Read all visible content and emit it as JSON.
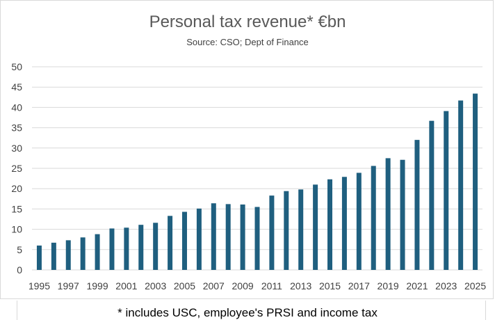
{
  "chart_data": {
    "type": "bar",
    "title": "Personal tax revenue* €bn",
    "subtitle": "Source: CSO; Dept of Finance",
    "footnote": "* includes USC, employee's PRSI and income tax",
    "categories": [
      "1995",
      "1996",
      "1997",
      "1998",
      "1999",
      "2000",
      "2001",
      "2002",
      "2003",
      "2004",
      "2005",
      "2006",
      "2007",
      "2008",
      "2009",
      "2010",
      "2011",
      "2012",
      "2013",
      "2014",
      "2015",
      "2016",
      "2017",
      "2018",
      "2019",
      "2020",
      "2021",
      "2022",
      "2023",
      "2024",
      "2025"
    ],
    "x_tick_labels": [
      "1995",
      "1997",
      "1999",
      "2001",
      "2003",
      "2005",
      "2007",
      "2009",
      "2011",
      "2013",
      "2015",
      "2017",
      "2019",
      "2021",
      "2023",
      "2025"
    ],
    "values": [
      6.0,
      6.7,
      7.3,
      8.0,
      8.8,
      10.2,
      10.4,
      11.1,
      11.6,
      13.3,
      14.3,
      15.1,
      16.4,
      16.2,
      16.1,
      15.5,
      18.3,
      19.4,
      19.8,
      21.0,
      22.3,
      22.9,
      23.9,
      25.6,
      27.5,
      27.1,
      32.0,
      36.7,
      39.1,
      41.7,
      43.4
    ],
    "ylim": [
      0,
      50
    ],
    "y_ticks": [
      "0",
      "5",
      "10",
      "15",
      "20",
      "25",
      "30",
      "35",
      "40",
      "45",
      "50"
    ],
    "bar_color": "#1f5f7f",
    "grid": true,
    "legend": "none"
  }
}
